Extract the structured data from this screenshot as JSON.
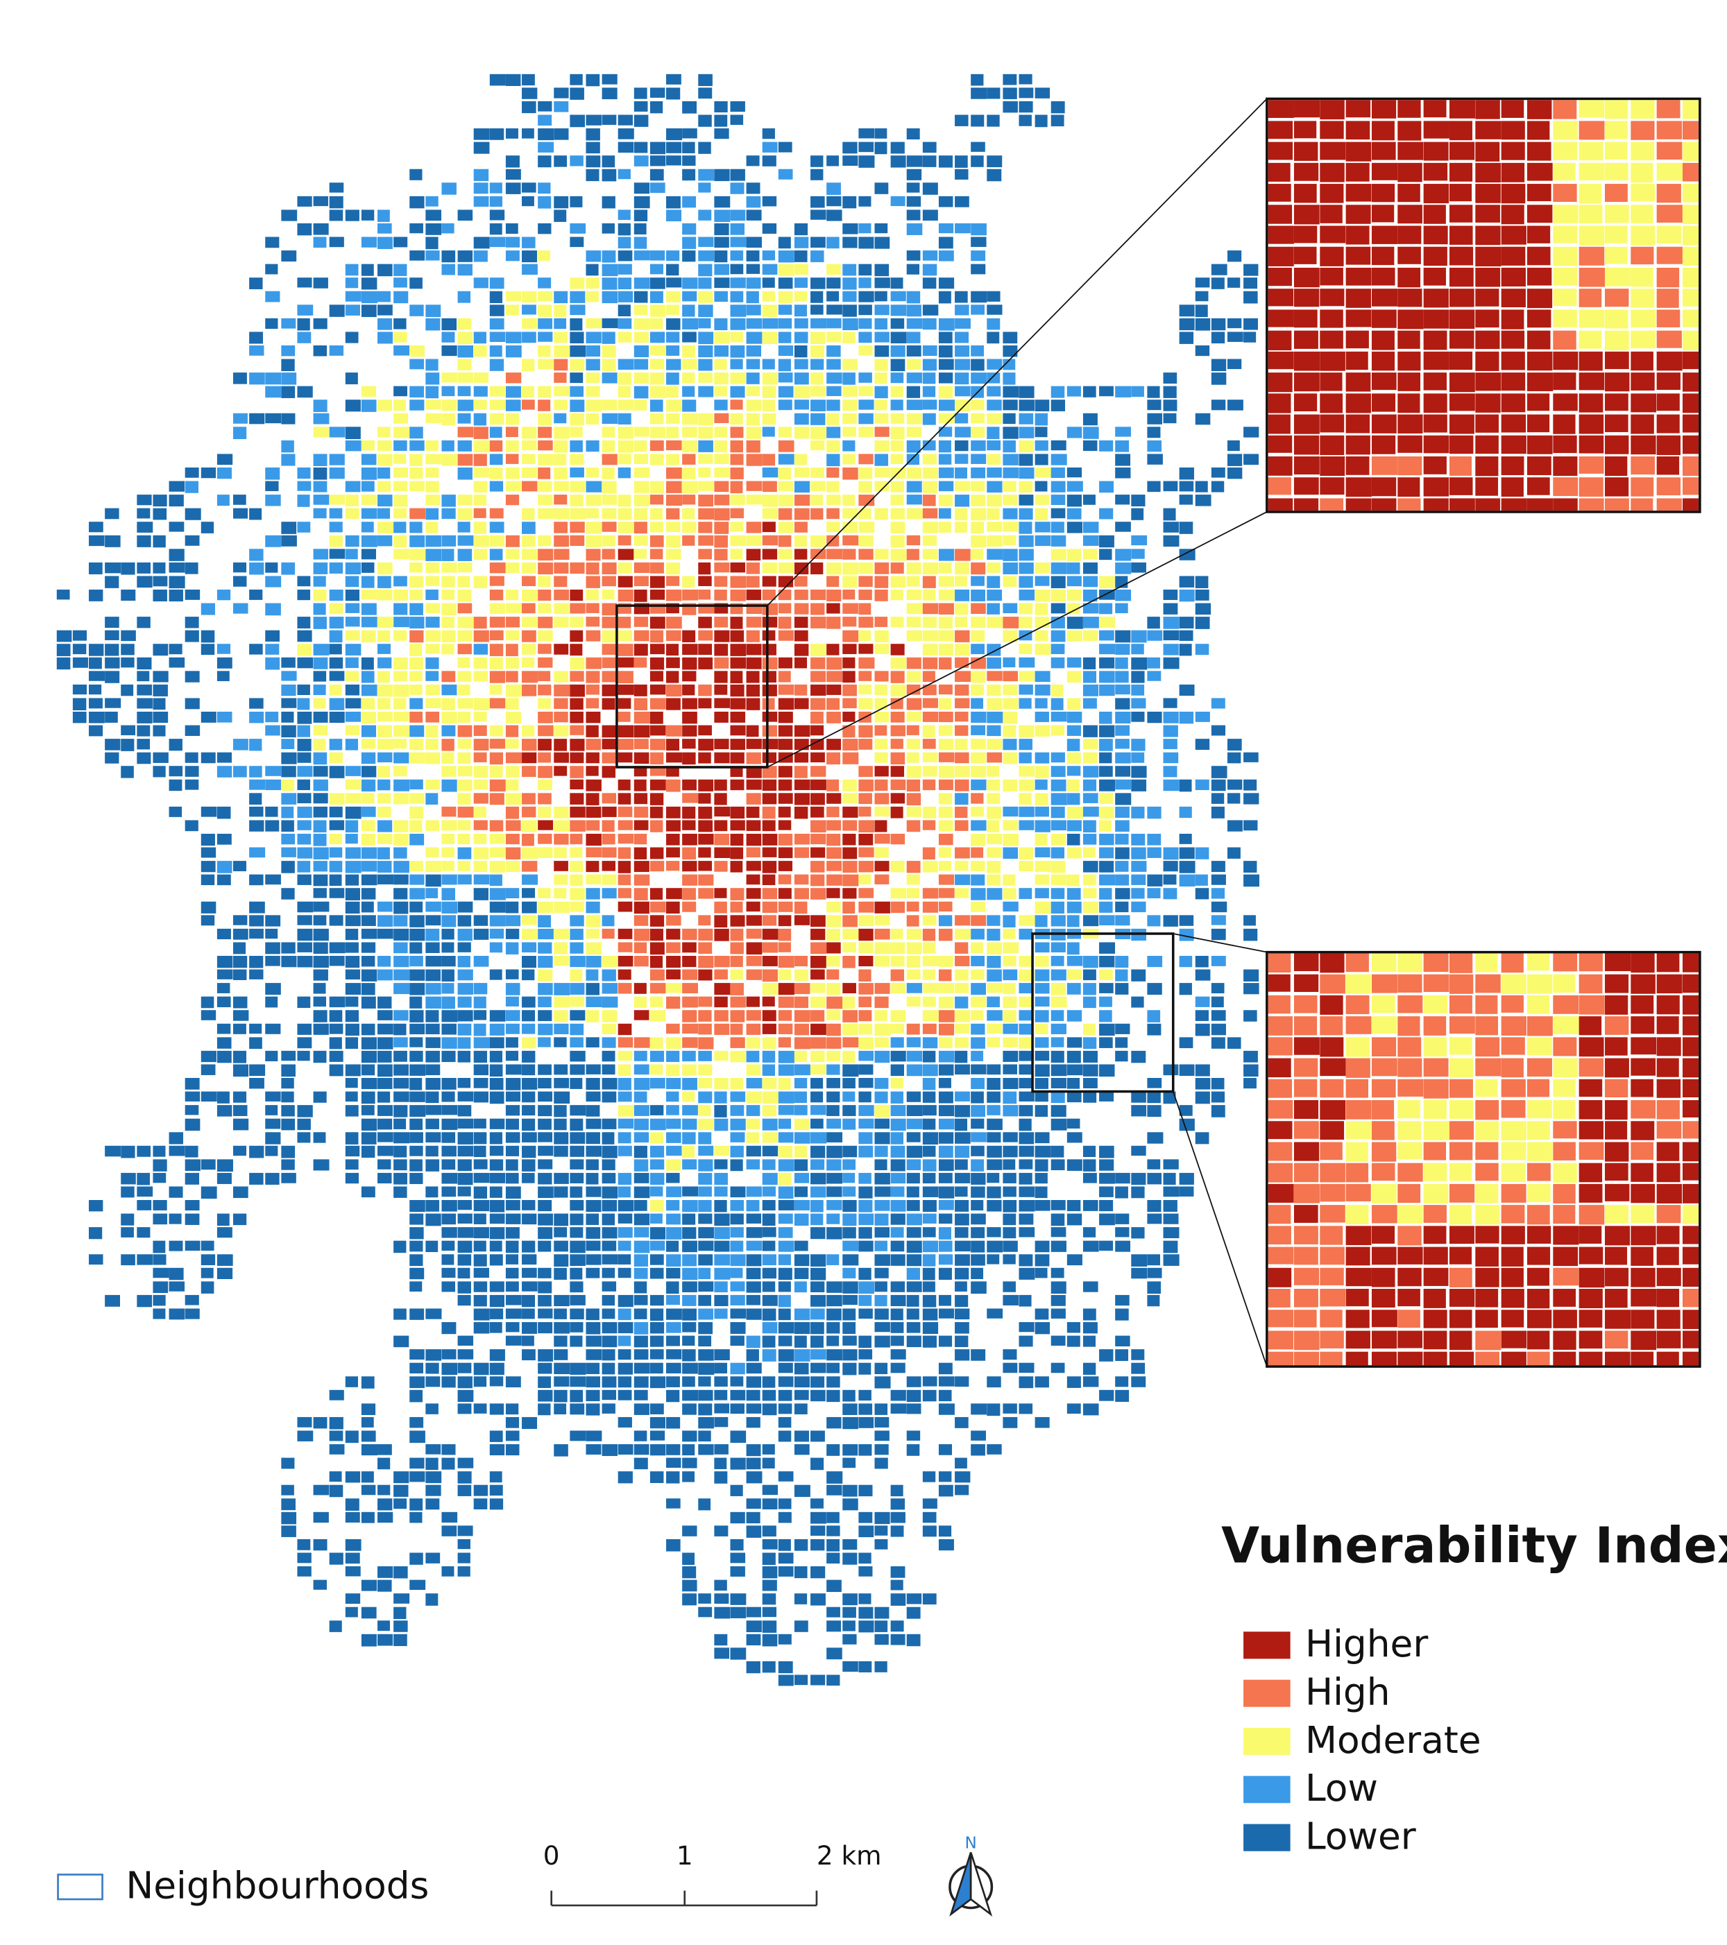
{
  "legend": {
    "title": "Vulnerability Index",
    "items": [
      {
        "label": "Higher",
        "color": "#b01c11"
      },
      {
        "label": "High",
        "color": "#f4754f"
      },
      {
        "label": "Moderate",
        "color": "#fafa6e"
      },
      {
        "label": "Low",
        "color": "#3a9ae8"
      },
      {
        "label": "Lower",
        "color": "#1b6aad"
      }
    ]
  },
  "neighbourhoods": {
    "label": "Neighbourhoods"
  },
  "scale_bar": {
    "labels": [
      "0",
      "1",
      "2 km"
    ]
  },
  "north_arrow": {
    "label": "N"
  }
}
